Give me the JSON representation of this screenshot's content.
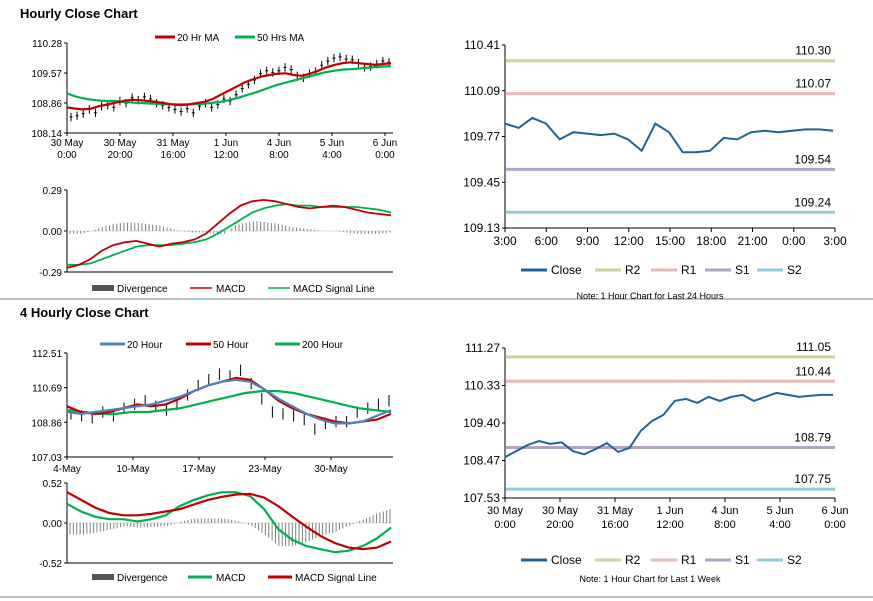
{
  "colors": {
    "red": "#c00000",
    "green": "#00b050",
    "blue": "#4f81bd",
    "dkblue": "#1f6496",
    "r2": "#c3d69b",
    "r1": "#e6b9b8",
    "s1": "#b3a2c7",
    "s2": "#93cddd",
    "gray": "#808080",
    "black": "#000000"
  },
  "section1": {
    "title": "Hourly Close Chart"
  },
  "section2": {
    "title": "4 Hourly Close Chart"
  },
  "chart_data": [
    {
      "id": "h_price",
      "type": "line",
      "title": "Hourly Close Chart",
      "legend": [
        "20 Hr MA",
        "50 Hrs MA"
      ],
      "yticks": [
        "110.28",
        "109.57",
        "108.86",
        "108.14"
      ],
      "ylim": [
        108.14,
        110.28
      ],
      "xticks": [
        [
          "30 May",
          "0:00"
        ],
        [
          "30 May",
          "20:00"
        ],
        [
          "31 May",
          "16:00"
        ],
        [
          "1 Jun",
          "12:00"
        ],
        [
          "4 Jun",
          "8:00"
        ],
        [
          "5 Jun",
          "4:00"
        ],
        [
          "6 Jun",
          "0:00"
        ]
      ],
      "price": [
        108.52,
        108.55,
        108.6,
        108.7,
        108.62,
        108.78,
        108.8,
        108.75,
        108.9,
        108.85,
        108.98,
        108.92,
        109.0,
        108.95,
        108.85,
        108.8,
        108.75,
        108.7,
        108.65,
        108.72,
        108.62,
        108.78,
        108.85,
        108.75,
        108.82,
        108.95,
        108.9,
        109.05,
        109.2,
        109.3,
        109.4,
        109.55,
        109.62,
        109.58,
        109.62,
        109.7,
        109.65,
        109.5,
        109.45,
        109.55,
        109.6,
        109.75,
        109.85,
        109.92,
        109.95,
        109.9,
        109.88,
        109.8,
        109.7,
        109.72,
        109.78,
        109.85,
        109.82
      ],
      "ma20": [
        108.75,
        108.72,
        108.7,
        108.72,
        108.78,
        108.82,
        108.86,
        108.9,
        108.93,
        108.92,
        108.9,
        108.88,
        108.85,
        108.82,
        108.8,
        108.82,
        108.85,
        108.88,
        108.95,
        109.05,
        109.15,
        109.25,
        109.35,
        109.42,
        109.48,
        109.52,
        109.55,
        109.56,
        109.52,
        109.5,
        109.55,
        109.62,
        109.7,
        109.76,
        109.8,
        109.82,
        109.8,
        109.78,
        109.76,
        109.78,
        109.8
      ],
      "ma50": [
        109.08,
        109.0,
        108.95,
        108.92,
        108.9,
        108.9,
        108.88,
        108.86,
        108.85,
        108.84,
        108.83,
        108.82,
        108.82,
        108.82,
        108.83,
        108.85,
        108.88,
        108.92,
        108.98,
        109.05,
        109.12,
        109.2,
        109.28,
        109.34,
        109.4,
        109.46,
        109.52,
        109.58,
        109.62,
        109.65,
        109.66,
        109.68,
        109.7,
        109.72,
        109.73
      ]
    },
    {
      "id": "h_macd",
      "type": "line",
      "legend": [
        "Divergence",
        "MACD",
        "MACD Signal Line"
      ],
      "yticks": [
        "0.29",
        "0.00",
        "-0.29"
      ],
      "ylim": [
        -0.29,
        0.29
      ],
      "macd": [
        -0.26,
        -0.24,
        -0.2,
        -0.14,
        -0.1,
        -0.08,
        -0.07,
        -0.09,
        -0.11,
        -0.09,
        -0.08,
        -0.06,
        -0.02,
        0.05,
        0.12,
        0.18,
        0.21,
        0.22,
        0.21,
        0.19,
        0.17,
        0.16,
        0.17,
        0.18,
        0.17,
        0.15,
        0.13,
        0.12,
        0.11
      ],
      "signal": [
        -0.24,
        -0.24,
        -0.23,
        -0.2,
        -0.17,
        -0.14,
        -0.11,
        -0.1,
        -0.1,
        -0.1,
        -0.09,
        -0.08,
        -0.06,
        -0.02,
        0.03,
        0.08,
        0.13,
        0.16,
        0.18,
        0.19,
        0.18,
        0.18,
        0.17,
        0.17,
        0.17,
        0.17,
        0.16,
        0.15,
        0.13
      ],
      "divergence": [
        -0.02,
        -0.02,
        0.0,
        0.03,
        0.05,
        0.06,
        0.06,
        0.05,
        0.04,
        0.02,
        0.0,
        -0.01,
        -0.01,
        -0.02,
        -0.02,
        0.04,
        0.06,
        0.07,
        0.06,
        0.05,
        0.03,
        0.02,
        0.01,
        0.0,
        0.0,
        -0.01,
        -0.02,
        -0.02,
        -0.02,
        -0.01
      ]
    },
    {
      "id": "h_sr",
      "type": "line",
      "yticks": [
        "110.41",
        "110.09",
        "109.77",
        "109.45",
        "109.13"
      ],
      "ylim": [
        109.13,
        110.41
      ],
      "xticks": [
        "3:00",
        "6:00",
        "9:00",
        "12:00",
        "15:00",
        "18:00",
        "21:00",
        "0:00",
        "3:00"
      ],
      "close": [
        109.86,
        109.83,
        109.9,
        109.86,
        109.75,
        109.8,
        109.79,
        109.78,
        109.79,
        109.75,
        109.67,
        109.86,
        109.8,
        109.66,
        109.66,
        109.67,
        109.76,
        109.75,
        109.8,
        109.81,
        109.8,
        109.81,
        109.82,
        109.82,
        109.81
      ],
      "levels": {
        "r2": 110.3,
        "r1": 110.07,
        "s1": 109.54,
        "s2": 109.24
      },
      "level_labels": {
        "r2": "110.30",
        "r1": "110.07",
        "s1": "109.54",
        "s2": "109.24"
      },
      "legend": [
        "Close",
        "R2",
        "R1",
        "S1",
        "S2"
      ],
      "note": "Note: 1 Hour Chart for Last 24 Hours"
    },
    {
      "id": "h4_price",
      "type": "line",
      "title": "4 Hourly Close Chart",
      "legend": [
        "20 Hour",
        "50 Hour",
        "200 Hour"
      ],
      "yticks": [
        "112.51",
        "110.69",
        "108.86",
        "107.03"
      ],
      "ylim": [
        107.03,
        112.51
      ],
      "xticks": [
        "4-May",
        "10-May",
        "17-May",
        "23-May",
        "30-May"
      ],
      "price": [
        109.3,
        109.2,
        109.1,
        109.4,
        109.2,
        109.6,
        109.8,
        110.0,
        109.7,
        109.5,
        109.8,
        110.3,
        110.8,
        111.1,
        111.4,
        111.3,
        111.6,
        110.9,
        110.1,
        109.4,
        109.3,
        109.2,
        109.0,
        108.5,
        108.8,
        108.9,
        108.9,
        109.4,
        109.6,
        109.8,
        110.0
      ],
      "ma20": [
        109.4,
        109.3,
        109.4,
        109.5,
        109.6,
        109.7,
        109.8,
        110.0,
        110.2,
        110.5,
        110.8,
        111.0,
        111.1,
        111.0,
        110.6,
        110.1,
        109.7,
        109.3,
        109.0,
        108.8,
        108.8,
        108.9,
        109.2,
        109.5
      ],
      "ma50": [
        109.7,
        109.4,
        109.3,
        109.4,
        109.6,
        109.8,
        109.7,
        109.8,
        110.1,
        110.5,
        110.8,
        111.0,
        111.2,
        111.1,
        110.6,
        110.0,
        109.6,
        109.3,
        109.1,
        108.9,
        108.8,
        108.9,
        109.0,
        109.3
      ],
      "ma200": [
        109.5,
        109.4,
        109.3,
        109.3,
        109.4,
        109.4,
        109.5,
        109.6,
        109.8,
        110.0,
        110.2,
        110.4,
        110.5,
        110.5,
        110.4,
        110.2,
        110.0,
        109.8,
        109.6,
        109.5,
        109.4
      ]
    },
    {
      "id": "h4_macd",
      "type": "line",
      "legend": [
        "Divergence",
        "MACD",
        "MACD Signal Line"
      ],
      "yticks": [
        "0.52",
        "0.00",
        "-0.52"
      ],
      "ylim": [
        -0.52,
        0.52
      ],
      "macd": [
        0.25,
        0.15,
        0.08,
        0.05,
        0.05,
        0.02,
        0.05,
        0.1,
        0.22,
        0.3,
        0.36,
        0.4,
        0.4,
        0.35,
        0.18,
        -0.08,
        -0.22,
        -0.3,
        -0.34,
        -0.38,
        -0.36,
        -0.3,
        -0.2,
        -0.06
      ],
      "signal": [
        0.4,
        0.3,
        0.2,
        0.13,
        0.1,
        0.1,
        0.12,
        0.15,
        0.18,
        0.24,
        0.3,
        0.34,
        0.37,
        0.38,
        0.33,
        0.22,
        0.08,
        -0.05,
        -0.17,
        -0.26,
        -0.32,
        -0.34,
        -0.32,
        -0.24
      ],
      "divergence": [
        -0.15,
        -0.15,
        -0.12,
        -0.08,
        -0.04,
        -0.06,
        -0.05,
        -0.04,
        0.02,
        0.06,
        0.06,
        0.06,
        0.03,
        -0.03,
        -0.15,
        -0.3,
        -0.3,
        -0.25,
        -0.17,
        -0.12,
        -0.04,
        0.04,
        0.12,
        0.18
      ]
    },
    {
      "id": "h4_sr",
      "type": "line",
      "yticks": [
        "111.27",
        "110.33",
        "109.40",
        "108.47",
        "107.53"
      ],
      "ylim": [
        107.53,
        111.27
      ],
      "xticks": [
        [
          "30 May",
          "0:00"
        ],
        [
          "30 May",
          "20:00"
        ],
        [
          "31 May",
          "16:00"
        ],
        [
          "1 Jun",
          "12:00"
        ],
        [
          "4 Jun",
          "8:00"
        ],
        [
          "5 Jun",
          "4:00"
        ],
        [
          "6 Jun",
          "0:00"
        ]
      ],
      "close": [
        108.55,
        108.7,
        108.85,
        108.95,
        108.88,
        108.92,
        108.7,
        108.62,
        108.75,
        108.9,
        108.68,
        108.78,
        109.2,
        109.45,
        109.6,
        109.95,
        110.0,
        109.9,
        110.05,
        109.95,
        110.05,
        110.1,
        109.95,
        110.05,
        110.15,
        110.1,
        110.05,
        110.08,
        110.1,
        110.1
      ],
      "levels": {
        "r2": 111.05,
        "r1": 110.44,
        "s1": 108.79,
        "s2": 107.75
      },
      "level_labels": {
        "r2": "111.05",
        "r1": "110.44",
        "s1": "108.79",
        "s2": "107.75"
      },
      "legend": [
        "Close",
        "R2",
        "R1",
        "S1",
        "S2"
      ],
      "note": "Note: 1 Hour Chart for Last 1 Week"
    }
  ]
}
